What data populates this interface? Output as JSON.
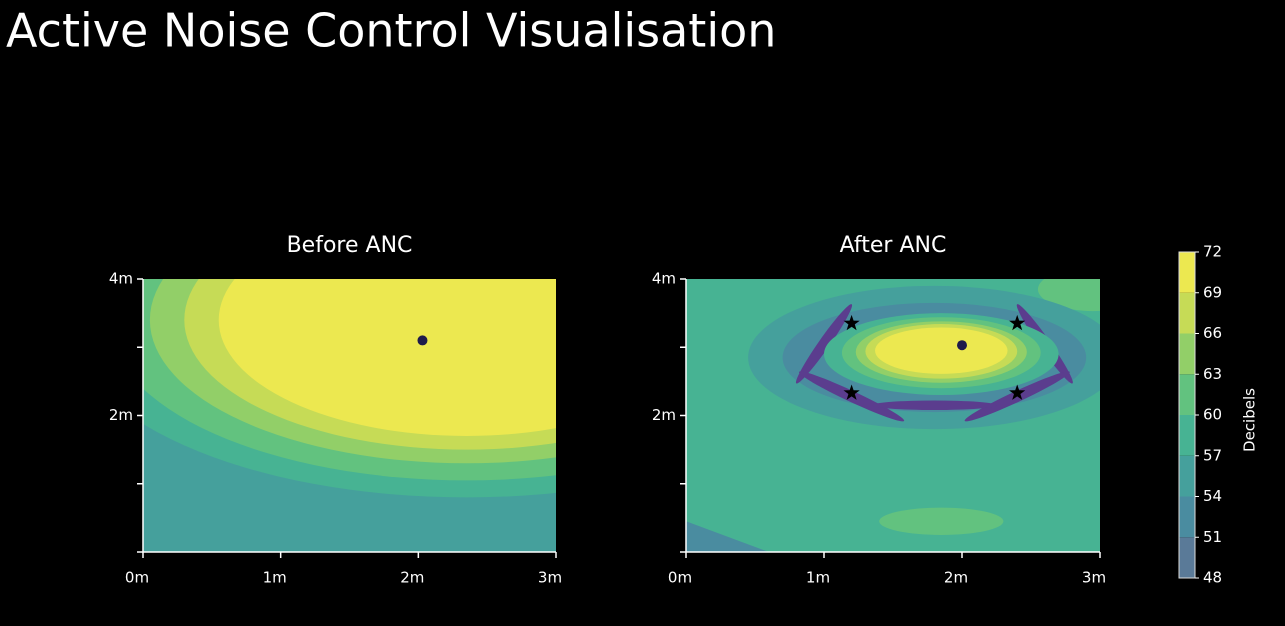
{
  "title": "Active Noise Control Visualisation",
  "colorbar": {
    "label": "Decibels",
    "ticks": [
      48,
      51,
      54,
      57,
      60,
      63,
      66,
      69,
      72
    ],
    "colors": [
      "#5a7a98",
      "#4a8ca0",
      "#45a09c",
      "#47b393",
      "#62c27f",
      "#92cf68",
      "#c6db56",
      "#ece850"
    ],
    "below_color": "#5b3d8e"
  },
  "chart_data": [
    {
      "type": "contour",
      "title": "Before ANC",
      "xlim": [
        0,
        3
      ],
      "ylim": [
        0,
        4
      ],
      "xticks": [
        {
          "value": 0,
          "label": "0m"
        },
        {
          "value": 1,
          "label": "1m"
        },
        {
          "value": 2,
          "label": "2m"
        },
        {
          "value": 3,
          "label": "3m"
        }
      ],
      "yticks": [
        {
          "value": 2,
          "label": "2m"
        },
        {
          "value": 4,
          "label": "4m"
        }
      ],
      "yminor": [
        0,
        1,
        3
      ],
      "source": {
        "x": 2.03,
        "y": 3.1
      },
      "marker_color": "#1e1b4b"
    },
    {
      "type": "contour",
      "title": "After ANC",
      "xlim": [
        0,
        3
      ],
      "ylim": [
        0,
        4
      ],
      "xticks": [
        {
          "value": 0,
          "label": "0m"
        },
        {
          "value": 1,
          "label": "1m"
        },
        {
          "value": 2,
          "label": "2m"
        },
        {
          "value": 3,
          "label": "3m"
        }
      ],
      "yticks": [
        {
          "value": 2,
          "label": "2m"
        },
        {
          "value": 4,
          "label": "4m"
        }
      ],
      "yminor": [
        0,
        1,
        3
      ],
      "source": {
        "x": 2.0,
        "y": 3.03
      },
      "marker_color": "#1e1b4b",
      "speakers": [
        {
          "x": 1.2,
          "y": 3.35
        },
        {
          "x": 2.4,
          "y": 3.35
        },
        {
          "x": 1.2,
          "y": 2.33
        },
        {
          "x": 2.4,
          "y": 2.33
        }
      ],
      "speaker_color": "#000000"
    }
  ]
}
